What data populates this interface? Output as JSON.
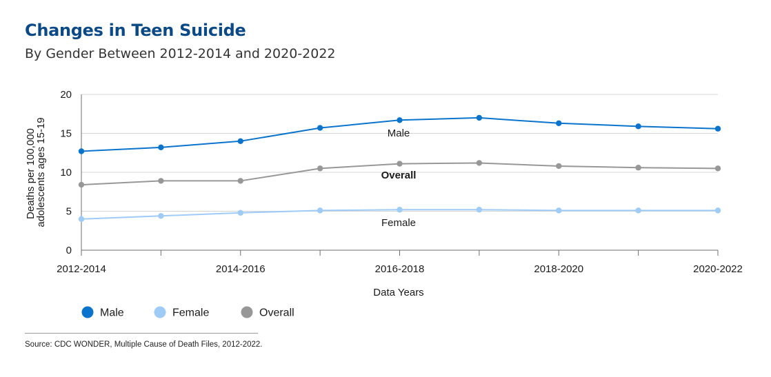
{
  "title": "Changes in Teen Suicide",
  "subtitle": "By Gender Between 2012-2014 and 2020-2022",
  "source": "Source: CDC WONDER, Multiple Cause of Death Files, 2012-2022.",
  "colors": {
    "title": "#0b4a86",
    "male": "#0a73cc",
    "female": "#9fcbf7",
    "overall": "#979797"
  },
  "chart_data": {
    "type": "line",
    "xlabel": "Data Years",
    "ylabel": "Deaths per 100,000 adolescents ages 15-19",
    "ylabel_lines": [
      "Deaths per 100,000",
      "adolescents ages 15-19"
    ],
    "ylim": [
      0,
      20
    ],
    "yticks": [
      0,
      5,
      10,
      15,
      20
    ],
    "x_tick_labels": [
      "2012-2014",
      "2014-2016",
      "2016-2018",
      "2018-2020",
      "2020-2022"
    ],
    "grid": "horizontal",
    "legend": "bottom-left",
    "series": [
      {
        "name": "Male",
        "key": "male",
        "label_bold": false,
        "values": [
          12.7,
          13.2,
          14.0,
          15.7,
          16.7,
          17.0,
          16.3,
          15.9,
          15.6
        ]
      },
      {
        "name": "Female",
        "key": "female",
        "label_bold": false,
        "values": [
          4.0,
          4.4,
          4.8,
          5.1,
          5.2,
          5.2,
          5.1,
          5.1,
          5.1
        ]
      },
      {
        "name": "Overall",
        "key": "overall",
        "label_bold": true,
        "values": [
          8.4,
          8.9,
          8.9,
          10.5,
          11.1,
          11.2,
          10.8,
          10.6,
          10.5
        ]
      }
    ]
  }
}
